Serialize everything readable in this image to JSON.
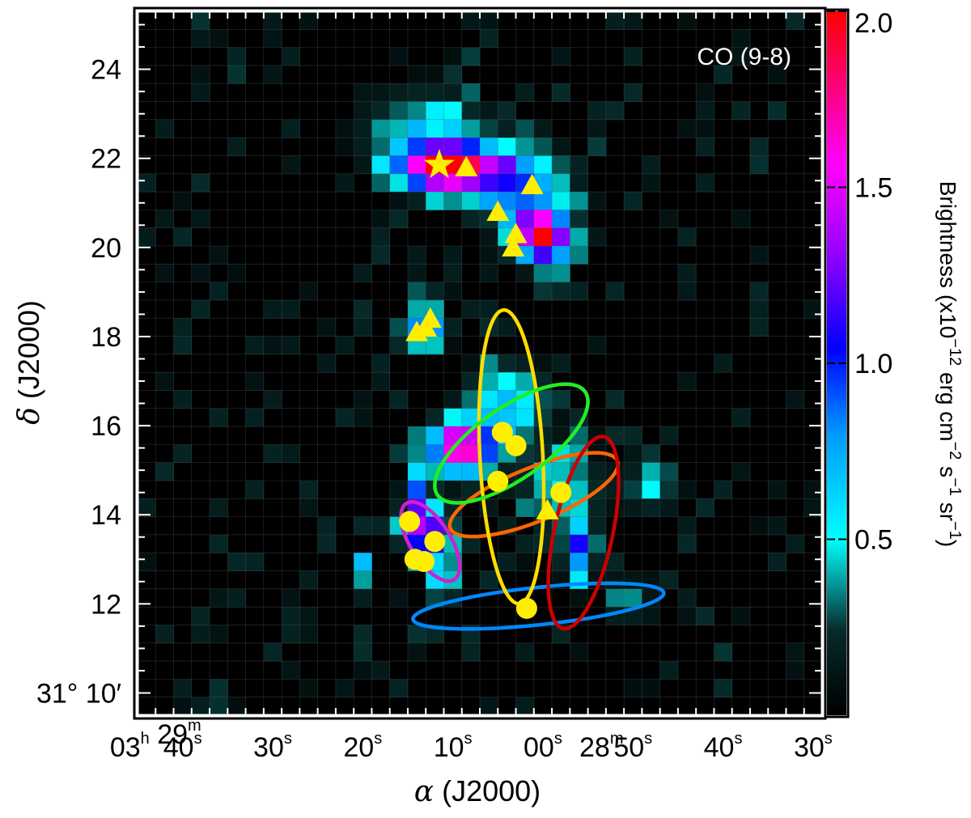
{
  "chart_data": {
    "type": "heatmap",
    "panel_label": "CO (9-8)",
    "xlabel_symbol": "α",
    "xlabel": " (J2000)",
    "ylabel_symbol": "δ",
    "ylabel": " (J2000)",
    "xlim_seconds_offset": [
      45,
      -31
    ],
    "ylim_arcmin": [
      9.5,
      25.3
    ],
    "x_ticks": [
      {
        "pos": 43,
        "parts": [
          [
            "03",
            "h"
          ],
          [
            " 29",
            "m"
          ]
        ]
      },
      {
        "pos": 40,
        "parts": [
          [
            "40",
            "s"
          ]
        ]
      },
      {
        "pos": 30,
        "parts": [
          [
            "30",
            "s"
          ]
        ]
      },
      {
        "pos": 20,
        "parts": [
          [
            "20",
            "s"
          ]
        ]
      },
      {
        "pos": 10,
        "parts": [
          [
            "10",
            "s"
          ]
        ]
      },
      {
        "pos": 0,
        "parts": [
          [
            "00",
            "s"
          ]
        ]
      },
      {
        "pos": -6.5,
        "parts": [
          [
            "28",
            "m"
          ]
        ]
      },
      {
        "pos": -10,
        "parts": [
          [
            "50",
            "s"
          ]
        ]
      },
      {
        "pos": -20,
        "parts": [
          [
            "40",
            "s"
          ]
        ]
      },
      {
        "pos": -30,
        "parts": [
          [
            "30",
            "s"
          ]
        ]
      }
    ],
    "y_ticks": [
      {
        "pos": 24,
        "label": "24"
      },
      {
        "pos": 22,
        "label": "22"
      },
      {
        "pos": 20,
        "label": "20"
      },
      {
        "pos": 18,
        "label": "18"
      },
      {
        "pos": 16,
        "label": "16"
      },
      {
        "pos": 14,
        "label": "14"
      },
      {
        "pos": 12,
        "label": "12"
      },
      {
        "pos": 10,
        "label": "31° 10′"
      }
    ],
    "colorbar": {
      "range": [
        0,
        2.0
      ],
      "ticks": [
        "0.5",
        "1.0",
        "1.5",
        "2.0"
      ],
      "title": "Brightness (x10",
      "title_exp1": "−12",
      "title_mid": " erg cm",
      "title_exp2": "−2",
      "title_mid2": " s",
      "title_exp3": "−1",
      "title_mid3": " sr",
      "title_exp4": "−1",
      "title_end": ")"
    },
    "colors": {
      "background": "#000000",
      "marker": "#ffee00",
      "ellipses": [
        "#0088ff",
        "#ff6600",
        "#ffdd00",
        "#22ee22",
        "#cc0000",
        "#cc22cc"
      ]
    },
    "emission_blobs": [
      {
        "x": 11,
        "y": 21.8,
        "sx": 3.2,
        "sy": 0.35,
        "amp": 2.0
      },
      {
        "x": 4,
        "y": 21.6,
        "sx": 4,
        "sy": 0.5,
        "amp": 0.8
      },
      {
        "x": 13,
        "y": 22.6,
        "sx": 5,
        "sy": 0.7,
        "amp": 0.45
      },
      {
        "x": 0,
        "y": 20.2,
        "sx": 2.0,
        "sy": 0.35,
        "amp": 1.8
      },
      {
        "x": 1,
        "y": 20.8,
        "sx": 3,
        "sy": 0.6,
        "amp": 0.5
      },
      {
        "x": 13,
        "y": 18.2,
        "sx": 1.5,
        "sy": 0.35,
        "amp": 1.0
      },
      {
        "x": 9,
        "y": 15.5,
        "sx": 2.5,
        "sy": 0.4,
        "amp": 1.8
      },
      {
        "x": 4,
        "y": 16.5,
        "sx": 3,
        "sy": 0.6,
        "amp": 0.7
      },
      {
        "x": -2,
        "y": 14.6,
        "sx": 3,
        "sy": 0.6,
        "amp": 0.5
      },
      {
        "x": -4,
        "y": 13.2,
        "sx": 1.2,
        "sy": 0.5,
        "amp": 0.9
      },
      {
        "x": 13,
        "y": 13.6,
        "sx": 1.6,
        "sy": 0.4,
        "amp": 1.5
      },
      {
        "x": 14,
        "y": 14.4,
        "sx": 1.0,
        "sy": 0.4,
        "amp": 0.9
      },
      {
        "x": 11,
        "y": 12.6,
        "sx": 1.2,
        "sy": 0.4,
        "amp": 0.6
      },
      {
        "x": 20,
        "y": 12.8,
        "sx": 0.5,
        "sy": 0.2,
        "amp": 0.9
      },
      {
        "x": -9,
        "y": 12.1,
        "sx": 1.2,
        "sy": 0.3,
        "amp": 0.5
      },
      {
        "x": -12,
        "y": 14.6,
        "sx": 2.5,
        "sy": 0.4,
        "amp": 0.35
      }
    ],
    "stars": [
      {
        "x": 11.5,
        "y": 21.85
      }
    ],
    "triangles": [
      {
        "x": 8.5,
        "y": 21.8
      },
      {
        "x": 1.2,
        "y": 21.4
      },
      {
        "x": 5.0,
        "y": 20.8
      },
      {
        "x": 3.0,
        "y": 20.3
      },
      {
        "x": 3.3,
        "y": 20.0
      },
      {
        "x": 12.5,
        "y": 18.4
      },
      {
        "x": 13.0,
        "y": 18.2
      },
      {
        "x": 14.0,
        "y": 18.1
      },
      {
        "x": -0.5,
        "y": 14.1
      }
    ],
    "circles": [
      {
        "x": 4.5,
        "y": 15.85
      },
      {
        "x": 3.0,
        "y": 15.55
      },
      {
        "x": 5.0,
        "y": 14.75
      },
      {
        "x": -2.0,
        "y": 14.5
      },
      {
        "x": 14.8,
        "y": 13.85
      },
      {
        "x": 12.0,
        "y": 13.4
      },
      {
        "x": 14.2,
        "y": 13.0
      },
      {
        "x": 13.2,
        "y": 12.95
      },
      {
        "x": 1.8,
        "y": 11.9
      }
    ],
    "ellipses": [
      {
        "x": 0.5,
        "y": 11.95,
        "rx": 28,
        "ry": 0.42,
        "angle": -6,
        "color_index": 0
      },
      {
        "x": 1.0,
        "y": 14.45,
        "rx": 20,
        "ry": 0.6,
        "angle": -22,
        "color_index": 1
      },
      {
        "x": 3.5,
        "y": 15.3,
        "rx": 7,
        "ry": 3.3,
        "angle": -3,
        "color_index": 2
      },
      {
        "x": 3.5,
        "y": 15.6,
        "rx": 20,
        "ry": 0.8,
        "angle": -35,
        "color_index": 3
      },
      {
        "x": -4.5,
        "y": 13.6,
        "rx": 6.5,
        "ry": 2.2,
        "angle": 12,
        "color_index": 4
      },
      {
        "x": 12.5,
        "y": 13.4,
        "rx": 10,
        "ry": 0.45,
        "angle": 58,
        "color_index": 5
      }
    ]
  }
}
